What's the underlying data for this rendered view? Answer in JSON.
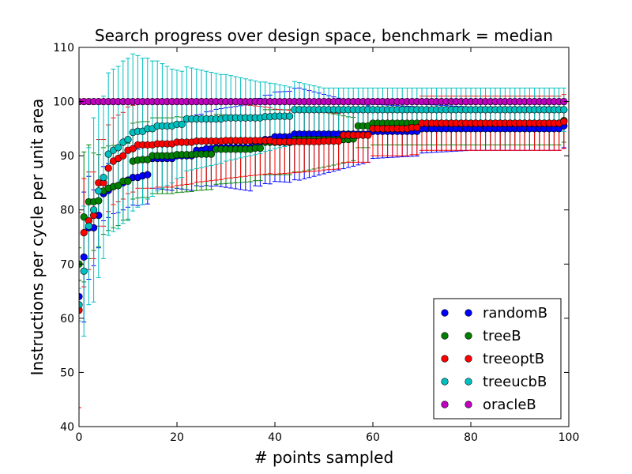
{
  "chart_data": {
    "type": "scatter",
    "title": "Search progress over design space, benchmark = median",
    "xlabel": "# points sampled",
    "ylabel": "Instructions per cycle per unit area",
    "xlim": [
      0,
      100
    ],
    "ylim": [
      40,
      110
    ],
    "xticks": [
      "0",
      "20",
      "40",
      "60",
      "80",
      "100"
    ],
    "yticks": [
      "40",
      "50",
      "60",
      "70",
      "80",
      "90",
      "100",
      "110"
    ],
    "grid": false,
    "legend_position": "bottom-right",
    "marker": "circle",
    "error_bars": true,
    "series": [
      {
        "name": "randomB",
        "color": "#0000ff",
        "anchors": [
          [
            0,
            64
          ],
          [
            1,
            71.3
          ],
          [
            2,
            76.7
          ],
          [
            3,
            76.7
          ],
          [
            4,
            79
          ],
          [
            5,
            83
          ],
          [
            6,
            83.6
          ],
          [
            7,
            84.3
          ],
          [
            8,
            84.5
          ],
          [
            9,
            85
          ],
          [
            10,
            85.5
          ],
          [
            11,
            86
          ],
          [
            12,
            86
          ],
          [
            13,
            86.3
          ],
          [
            14,
            86.5
          ],
          [
            15,
            89.5
          ],
          [
            20,
            90
          ],
          [
            24,
            91
          ],
          [
            26,
            91.3
          ],
          [
            28,
            91.5
          ],
          [
            36,
            92.5
          ],
          [
            38,
            93
          ],
          [
            40,
            93.5
          ],
          [
            44,
            94
          ],
          [
            50,
            94
          ],
          [
            56,
            94
          ],
          [
            60,
            94.5
          ],
          [
            70,
            95
          ],
          [
            99,
            95.5
          ]
        ],
        "err_anchors": [
          [
            0,
            3
          ],
          [
            1,
            12
          ],
          [
            3,
            7
          ],
          [
            5,
            5
          ],
          [
            10,
            5
          ],
          [
            20,
            6
          ],
          [
            35,
            8
          ],
          [
            45,
            8.5
          ],
          [
            60,
            5
          ],
          [
            80,
            4
          ],
          [
            99,
            4
          ]
        ]
      },
      {
        "name": "treeB",
        "color": "#008000",
        "anchors": [
          [
            0,
            70
          ],
          [
            1,
            78.7
          ],
          [
            2,
            81.5
          ],
          [
            3,
            81.5
          ],
          [
            4,
            81.7
          ],
          [
            5,
            83.5
          ],
          [
            6,
            84
          ],
          [
            7,
            84.3
          ],
          [
            8,
            84.5
          ],
          [
            9,
            85.3
          ],
          [
            10,
            85.3
          ],
          [
            11,
            89
          ],
          [
            12,
            89.2
          ],
          [
            13,
            89.3
          ],
          [
            14,
            89.3
          ],
          [
            15,
            90
          ],
          [
            20,
            90.2
          ],
          [
            24,
            90.3
          ],
          [
            28,
            91.2
          ],
          [
            36,
            91.4
          ],
          [
            38,
            92.5
          ],
          [
            44,
            93
          ],
          [
            50,
            93
          ],
          [
            56,
            93.1
          ],
          [
            57,
            95.5
          ],
          [
            60,
            96
          ],
          [
            70,
            96
          ],
          [
            99,
            96.5
          ]
        ],
        "err_anchors": [
          [
            0,
            3
          ],
          [
            1,
            12
          ],
          [
            3,
            9
          ],
          [
            5,
            8
          ],
          [
            10,
            7
          ],
          [
            20,
            7
          ],
          [
            35,
            6
          ],
          [
            45,
            6
          ],
          [
            56,
            4
          ],
          [
            70,
            4
          ],
          [
            99,
            4
          ]
        ]
      },
      {
        "name": "treeoptB",
        "color": "#ff0000",
        "anchors": [
          [
            0,
            61.5
          ],
          [
            1,
            75.8
          ],
          [
            2,
            78
          ],
          [
            3,
            79
          ],
          [
            4,
            85
          ],
          [
            5,
            85
          ],
          [
            6,
            87.7
          ],
          [
            7,
            89
          ],
          [
            8,
            89.5
          ],
          [
            9,
            90
          ],
          [
            10,
            91
          ],
          [
            11,
            91.3
          ],
          [
            12,
            92
          ],
          [
            16,
            92.2
          ],
          [
            20,
            92.5
          ],
          [
            24,
            92.7
          ],
          [
            30,
            92.8
          ],
          [
            36,
            92.8
          ],
          [
            40,
            92.6
          ],
          [
            44,
            92.6
          ],
          [
            50,
            92.7
          ],
          [
            54,
            93.8
          ],
          [
            58,
            93.8
          ],
          [
            60,
            95
          ],
          [
            68,
            95.2
          ],
          [
            70,
            96
          ],
          [
            99,
            96.3
          ]
        ],
        "err_anchors": [
          [
            0,
            18
          ],
          [
            1,
            10
          ],
          [
            3,
            8
          ],
          [
            10,
            8
          ],
          [
            20,
            8
          ],
          [
            40,
            6
          ],
          [
            55,
            5
          ],
          [
            60,
            5
          ],
          [
            70,
            5
          ],
          [
            99,
            5
          ]
        ]
      },
      {
        "name": "treeucbB",
        "color": "#00bfbf",
        "anchors": [
          [
            0,
            62.5
          ],
          [
            1,
            68.7
          ],
          [
            2,
            77
          ],
          [
            3,
            80
          ],
          [
            4,
            83.5
          ],
          [
            5,
            86
          ],
          [
            6,
            90.3
          ],
          [
            7,
            91
          ],
          [
            8,
            91.5
          ],
          [
            9,
            92.5
          ],
          [
            10,
            93
          ],
          [
            11,
            94.3
          ],
          [
            12,
            94.5
          ],
          [
            14,
            95
          ],
          [
            16,
            95.5
          ],
          [
            20,
            95.8
          ],
          [
            22,
            96.8
          ],
          [
            30,
            97
          ],
          [
            38,
            97.2
          ],
          [
            40,
            97.3
          ],
          [
            44,
            98.5
          ],
          [
            50,
            98.5
          ],
          [
            60,
            98.5
          ],
          [
            80,
            98.5
          ],
          [
            99,
            98.5
          ]
        ],
        "err_anchors": [
          [
            0,
            3
          ],
          [
            1,
            12
          ],
          [
            3,
            17
          ],
          [
            5,
            15
          ],
          [
            10,
            15
          ],
          [
            20,
            10
          ],
          [
            40,
            6
          ],
          [
            50,
            4
          ],
          [
            99,
            4
          ]
        ]
      },
      {
        "name": "oracleB",
        "color": "#bf00bf",
        "anchors": [
          [
            0,
            100
          ],
          [
            99,
            100
          ]
        ],
        "err_anchors": [
          [
            0,
            0
          ],
          [
            99,
            0
          ]
        ]
      }
    ],
    "x_points": 100
  }
}
